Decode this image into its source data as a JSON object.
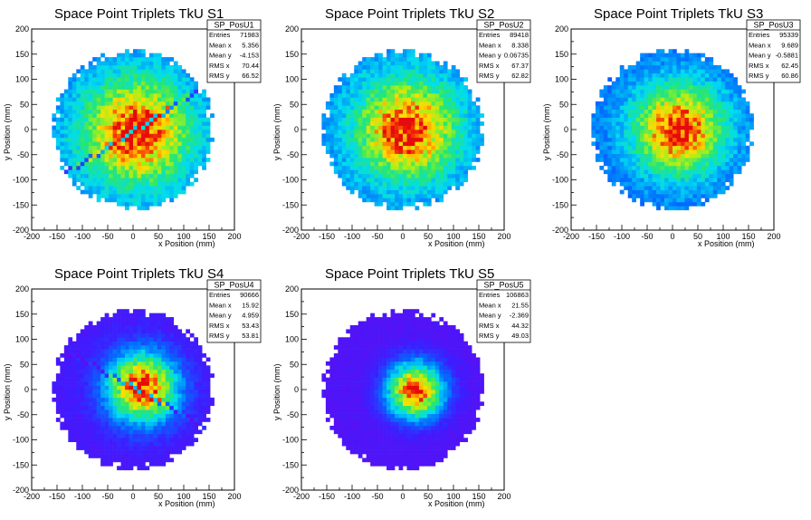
{
  "chart_data": [
    {
      "type": "heatmap",
      "title": "Space Point Triplets TkU S1",
      "xlabel": "x Position (mm)",
      "ylabel": "y Position (mm)",
      "xlim": [
        -200,
        200
      ],
      "ylim": [
        -200,
        200
      ],
      "xticks": [
        -200,
        -150,
        -100,
        -50,
        0,
        50,
        100,
        150,
        200
      ],
      "yticks": [
        -200,
        -150,
        -100,
        -50,
        0,
        50,
        100,
        150,
        200
      ],
      "distribution": {
        "cx": 5,
        "cy": -4,
        "sigma": 70,
        "radius": 160,
        "edge_floor": 0.28,
        "stripe": true,
        "stripe_slope": 0.62,
        "stripe_offset": -4
      },
      "stats": {
        "name": "SP_PosU1",
        "rows": [
          {
            "label": "Entries",
            "value": "71983"
          },
          {
            "label": "Mean x",
            "value": "5.356"
          },
          {
            "label": "Mean y",
            "value": "-4.153"
          },
          {
            "label": "RMS x",
            "value": "70.44"
          },
          {
            "label": "RMS y",
            "value": "66.52"
          }
        ]
      }
    },
    {
      "type": "heatmap",
      "title": "Space Point Triplets TkU S2",
      "xlabel": "x Position (mm)",
      "ylabel": "y Position (mm)",
      "xlim": [
        -200,
        200
      ],
      "ylim": [
        -200,
        200
      ],
      "xticks": [
        -200,
        -150,
        -100,
        -50,
        0,
        50,
        100,
        150,
        200
      ],
      "yticks": [
        -200,
        -150,
        -100,
        -50,
        0,
        50,
        100,
        150,
        200
      ],
      "distribution": {
        "cx": 8,
        "cy": 0,
        "sigma": 66,
        "radius": 160,
        "edge_floor": 0.28,
        "stripe": false
      },
      "stats": {
        "name": "SP_PosU2",
        "rows": [
          {
            "label": "Entries",
            "value": "89418"
          },
          {
            "label": "Mean x",
            "value": "8.338"
          },
          {
            "label": "Mean y",
            "value": "0.06735"
          },
          {
            "label": "RMS x",
            "value": "67.37"
          },
          {
            "label": "RMS y",
            "value": "62.82"
          }
        ]
      }
    },
    {
      "type": "heatmap",
      "title": "Space Point Triplets TkU S3",
      "xlabel": "x Position (mm)",
      "ylabel": "y Position (mm)",
      "xlim": [
        -200,
        200
      ],
      "ylim": [
        -200,
        200
      ],
      "xticks": [
        -200,
        -150,
        -100,
        -50,
        0,
        50,
        100,
        150,
        200
      ],
      "yticks": [
        -200,
        -150,
        -100,
        -50,
        0,
        50,
        100,
        150,
        200
      ],
      "distribution": {
        "cx": 12,
        "cy": 0,
        "sigma": 58,
        "radius": 160,
        "edge_floor": 0.26,
        "stripe": false
      },
      "stats": {
        "name": "SP_PosU3",
        "rows": [
          {
            "label": "Entries",
            "value": "95339"
          },
          {
            "label": "Mean x",
            "value": "9.689"
          },
          {
            "label": "Mean y",
            "value": "-0.5881"
          },
          {
            "label": "RMS x",
            "value": "62.45"
          },
          {
            "label": "RMS y",
            "value": "60.86"
          }
        ]
      }
    },
    {
      "type": "heatmap",
      "title": "Space Point Triplets TkU S4",
      "xlabel": "x Position (mm)",
      "ylabel": "y Position (mm)",
      "xlim": [
        -200,
        200
      ],
      "ylim": [
        -200,
        200
      ],
      "xticks": [
        -200,
        -150,
        -100,
        -50,
        0,
        50,
        100,
        150,
        200
      ],
      "yticks": [
        -200,
        -150,
        -100,
        -50,
        0,
        50,
        100,
        150,
        200
      ],
      "distribution": {
        "cx": 18,
        "cy": 4,
        "sigma": 45,
        "radius": 160,
        "edge_floor": 0.1,
        "stripe": true,
        "stripe_slope": -0.55,
        "stripe_offset": 5
      },
      "stats": {
        "name": "SP_PosU4",
        "rows": [
          {
            "label": "Entries",
            "value": "90666"
          },
          {
            "label": "Mean x",
            "value": "15.92"
          },
          {
            "label": "Mean y",
            "value": "4.959"
          },
          {
            "label": "RMS x",
            "value": "53.43"
          },
          {
            "label": "RMS y",
            "value": "53.81"
          }
        ]
      }
    },
    {
      "type": "heatmap",
      "title": "Space Point Triplets TkU S5",
      "xlabel": "x Position (mm)",
      "ylabel": "y Position (mm)",
      "xlim": [
        -200,
        200
      ],
      "ylim": [
        -200,
        200
      ],
      "xticks": [
        -200,
        -150,
        -100,
        -50,
        0,
        50,
        100,
        150,
        200
      ],
      "yticks": [
        -200,
        -150,
        -100,
        -50,
        0,
        50,
        100,
        150,
        200
      ],
      "distribution": {
        "cx": 25,
        "cy": -2,
        "sigma": 36,
        "radius": 160,
        "edge_floor": 0.08,
        "stripe": false
      },
      "stats": {
        "name": "SP_PosU5",
        "rows": [
          {
            "label": "Entries",
            "value": "106863"
          },
          {
            "label": "Mean x",
            "value": "21.55"
          },
          {
            "label": "Mean y",
            "value": "-2.369"
          },
          {
            "label": "RMS x",
            "value": "44.32"
          },
          {
            "label": "RMS y",
            "value": "49.03"
          }
        ]
      }
    }
  ]
}
